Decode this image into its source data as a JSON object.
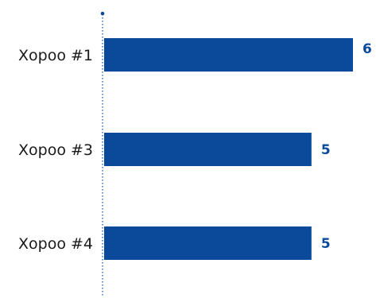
{
  "chart_data": {
    "type": "bar",
    "orientation": "horizontal",
    "categories": [
      "Хороо #1",
      "Хороо #3",
      "Хороо #4"
    ],
    "values": [
      6,
      5,
      5
    ],
    "value_labels": [
      "6",
      "5",
      "5"
    ],
    "xlim": [
      0,
      6
    ],
    "grid": false,
    "legend": "none",
    "colors": {
      "bar": "#0b4a9a",
      "value_label": "#0b4a9a",
      "axis": "#0b4a9a",
      "category_label": "#1a1a1a"
    }
  }
}
